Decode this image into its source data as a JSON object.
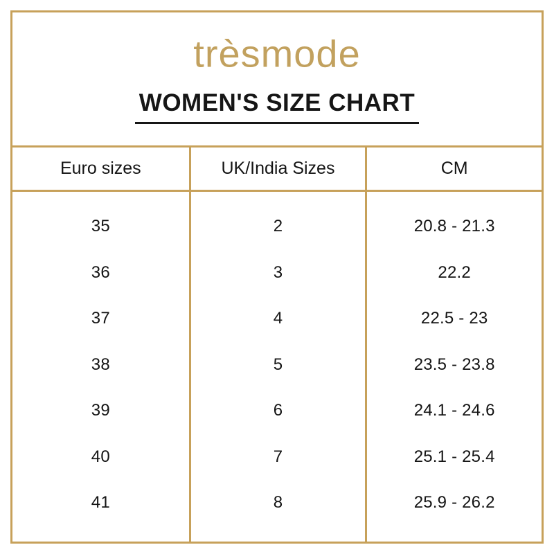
{
  "brand": {
    "logo_text": "trèsmode"
  },
  "title": "WOMEN'S SIZE CHART",
  "colors": {
    "frame_gold": "#C7A15A",
    "logo_gold": "#C2A15E",
    "text_black": "#161616",
    "background": "#FFFFFF"
  },
  "table": {
    "columns": [
      "Euro sizes",
      "UK/India Sizes",
      "CM"
    ],
    "rows": [
      {
        "euro": "35",
        "uk_india": "2",
        "cm": "20.8 - 21.3"
      },
      {
        "euro": "36",
        "uk_india": "3",
        "cm": "22.2"
      },
      {
        "euro": "37",
        "uk_india": "4",
        "cm": "22.5 - 23"
      },
      {
        "euro": "38",
        "uk_india": "5",
        "cm": "23.5 - 23.8"
      },
      {
        "euro": "39",
        "uk_india": "6",
        "cm": "24.1 - 24.6"
      },
      {
        "euro": "40",
        "uk_india": "7",
        "cm": "25.1 - 25.4"
      },
      {
        "euro": "41",
        "uk_india": "8",
        "cm": "25.9 - 26.2"
      }
    ]
  },
  "chart_data": {
    "type": "table",
    "title": "WOMEN'S SIZE CHART",
    "brand": "trèsmode",
    "columns": [
      "Euro sizes",
      "UK/India Sizes",
      "CM"
    ],
    "rows": [
      [
        "35",
        "2",
        "20.8 - 21.3"
      ],
      [
        "36",
        "3",
        "22.2"
      ],
      [
        "37",
        "4",
        "22.5 - 23"
      ],
      [
        "38",
        "5",
        "23.5 - 23.8"
      ],
      [
        "39",
        "6",
        "24.1 - 24.6"
      ],
      [
        "40",
        "7",
        "25.1 - 25.4"
      ],
      [
        "41",
        "8",
        "25.9 - 26.2"
      ]
    ],
    "layout": {
      "grid": "gold vertical column dividers and header rule only; no horizontal rules between body rows",
      "legend_position": "none"
    }
  }
}
